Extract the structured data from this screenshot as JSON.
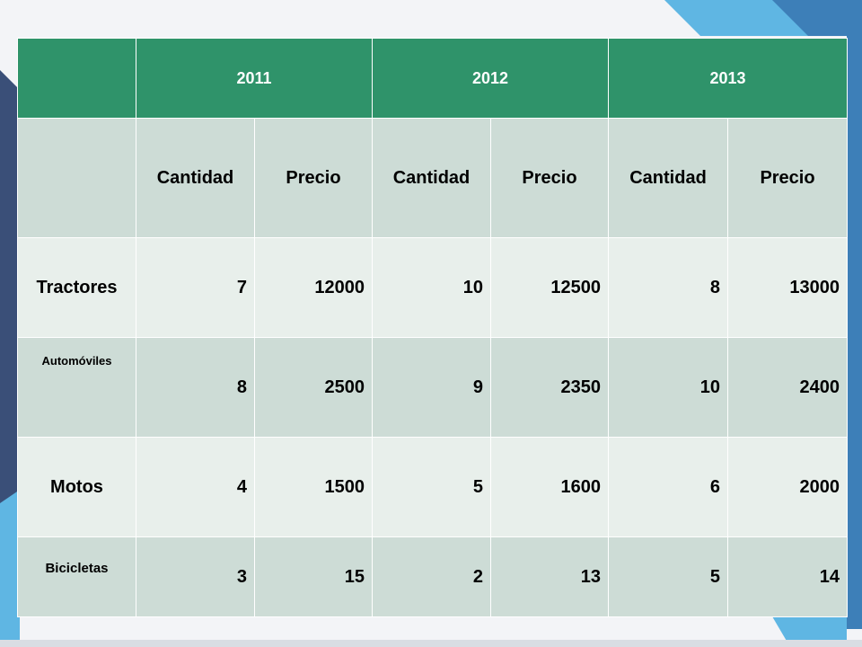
{
  "colors": {
    "header_green": "#2f936a",
    "row_dark": "#cddcd6",
    "row_light": "#e8efeb",
    "accent_blue": "#5fb6e3",
    "accent_navy": "#3a4f78"
  },
  "table": {
    "years": [
      "2011",
      "2012",
      "2013"
    ],
    "subheaders": [
      "Cantidad",
      "Precio",
      "Cantidad",
      "Precio",
      "Cantidad",
      "Precio"
    ],
    "rows": [
      {
        "label": "Tractores",
        "values": [
          "7",
          "12000",
          "10",
          "12500",
          "8",
          "13000"
        ]
      },
      {
        "label": "Automóviles",
        "values": [
          "8",
          "2500",
          "9",
          "2350",
          "10",
          "2400"
        ]
      },
      {
        "label": "Motos",
        "values": [
          "4",
          "1500",
          "5",
          "1600",
          "6",
          "2000"
        ]
      },
      {
        "label": "Bicicletas",
        "values": [
          "3",
          "15",
          "2",
          "13",
          "5",
          "14"
        ]
      }
    ]
  }
}
